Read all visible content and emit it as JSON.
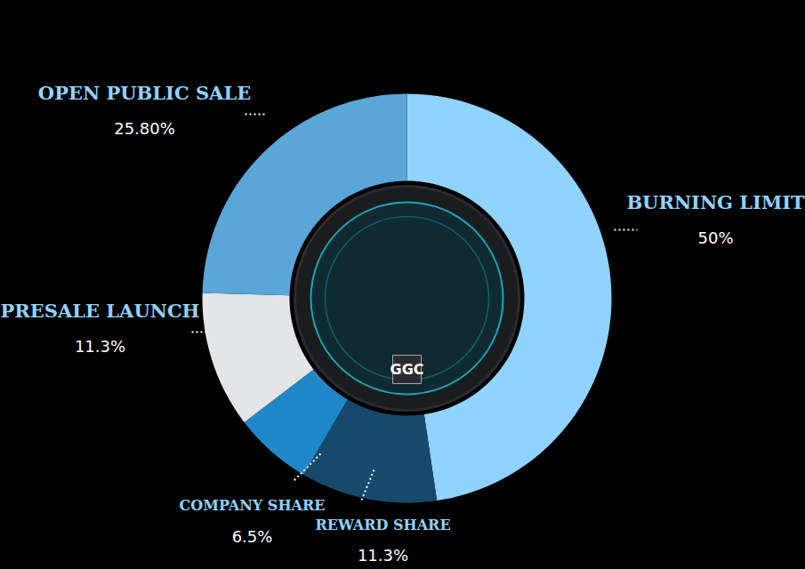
{
  "chart_data": {
    "type": "donut",
    "categories": [
      "BURNING LIMIT",
      "REWARD SHARE",
      "COMPANY SHARE",
      "PRESALE LAUNCH",
      "OPEN PUBLIC SALE"
    ],
    "values": [
      50,
      11.3,
      6.5,
      11.3,
      25.8
    ],
    "value_labels": [
      "50%",
      "11.3%",
      "6.5%",
      "11.3%",
      "25.80%"
    ],
    "colors": [
      "#8fd3fe",
      "#17496c",
      "#1e88c8",
      "#e3e5e6",
      "#5aa6d8"
    ],
    "data_labels": true,
    "center_label": "GGC"
  }
}
